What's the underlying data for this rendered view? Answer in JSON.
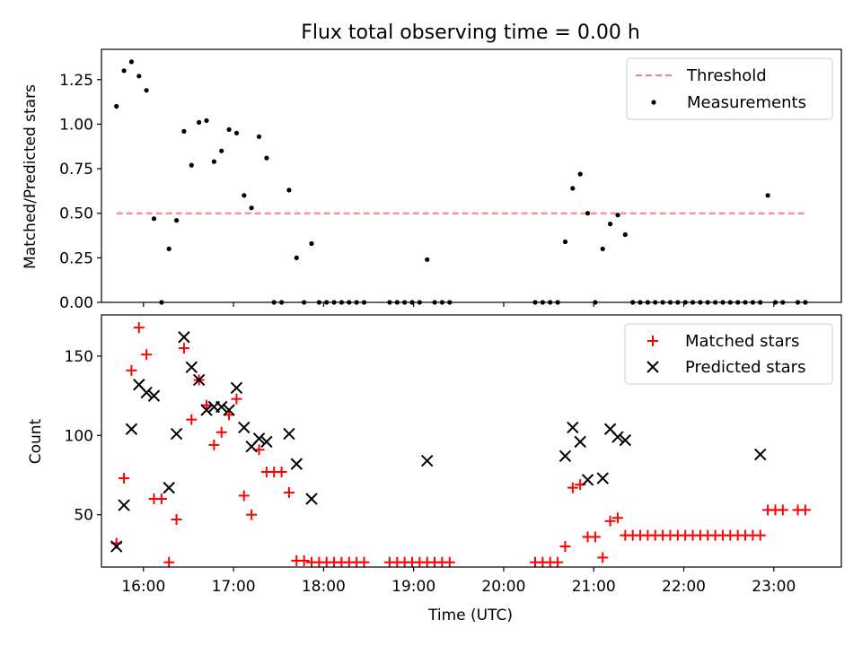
{
  "chart_data": [
    {
      "type": "scatter",
      "title": "Flux total observing time = 0.00 h",
      "ylabel": "Matched/Predicted stars",
      "xlabel": "",
      "xlim": [
        "15:32",
        "23:45"
      ],
      "ylim": [
        0,
        1.42
      ],
      "yticks": [
        0.0,
        0.25,
        0.5,
        0.75,
        1.0,
        1.25
      ],
      "ytick_labels": [
        "0.00",
        "0.25",
        "0.50",
        "0.75",
        "1.00",
        "1.25"
      ],
      "legend_position": "top-right",
      "grid": false,
      "threshold": {
        "name": "Threshold",
        "value": 0.5,
        "x_range": [
          "15:42",
          "23:21"
        ],
        "color": "#ff8080",
        "style": "dashed"
      },
      "series": [
        {
          "name": "Measurements",
          "color": "#000000",
          "marker": "dot",
          "x": [
            "15:42",
            "15:47",
            "15:52",
            "15:57",
            "16:02",
            "16:07",
            "16:12",
            "16:17",
            "16:22",
            "16:27",
            "16:32",
            "16:37",
            "16:42",
            "16:47",
            "16:52",
            "16:57",
            "17:02",
            "17:07",
            "17:12",
            "17:17",
            "17:22",
            "17:27",
            "17:32",
            "17:37",
            "17:42",
            "17:47",
            "17:52",
            "17:57",
            "18:02",
            "18:07",
            "18:12",
            "18:17",
            "18:22",
            "18:27",
            "18:44",
            "18:49",
            "18:54",
            "18:59",
            "19:04",
            "19:09",
            "19:14",
            "19:19",
            "19:24",
            "20:21",
            "20:26",
            "20:31",
            "20:36",
            "20:41",
            "20:46",
            "20:51",
            "20:56",
            "21:01",
            "21:06",
            "21:11",
            "21:16",
            "21:21",
            "21:26",
            "21:31",
            "21:36",
            "21:41",
            "21:46",
            "21:51",
            "21:56",
            "22:01",
            "22:06",
            "22:11",
            "22:16",
            "22:21",
            "22:26",
            "22:31",
            "22:36",
            "22:41",
            "22:46",
            "22:51",
            "22:56",
            "23:01",
            "23:06",
            "23:16",
            "23:21"
          ],
          "y": [
            1.1,
            1.3,
            1.35,
            1.27,
            1.19,
            0.47,
            0.0,
            0.3,
            0.46,
            0.96,
            0.77,
            1.01,
            1.02,
            0.79,
            0.85,
            0.97,
            0.95,
            0.6,
            0.53,
            0.93,
            0.81,
            0.0,
            0.0,
            0.63,
            0.25,
            0.0,
            0.33,
            0.0,
            0.0,
            0.0,
            0.0,
            0.0,
            0.0,
            0.0,
            0.0,
            0.0,
            0.0,
            0.0,
            0.0,
            0.24,
            0.0,
            0.0,
            0.0,
            0.0,
            0.0,
            0.0,
            0.0,
            0.34,
            0.64,
            0.72,
            0.5,
            0.0,
            0.3,
            0.44,
            0.49,
            0.38,
            0.0,
            0.0,
            0.0,
            0.0,
            0.0,
            0.0,
            0.0,
            0.0,
            0.0,
            0.0,
            0.0,
            0.0,
            0.0,
            0.0,
            0.0,
            0.0,
            0.0,
            0.0,
            0.6,
            0.0,
            0.0,
            0.0,
            0.0
          ]
        }
      ]
    },
    {
      "type": "scatter",
      "title": "",
      "xlabel": "Time (UTC)",
      "ylabel": "Count",
      "xlim": [
        "15:32",
        "23:45"
      ],
      "ylim": [
        17,
        176
      ],
      "yticks": [
        50,
        100,
        150
      ],
      "xtick_labels": [
        "16:00",
        "17:00",
        "18:00",
        "19:00",
        "20:00",
        "21:00",
        "22:00",
        "23:00"
      ],
      "legend_position": "top-right",
      "grid": false,
      "series": [
        {
          "name": "Matched stars",
          "color": "#ff0000",
          "marker": "plus",
          "x": [
            "15:42",
            "15:47",
            "15:52",
            "15:57",
            "16:02",
            "16:07",
            "16:12",
            "16:17",
            "16:22",
            "16:27",
            "16:32",
            "16:37",
            "16:42",
            "16:47",
            "16:52",
            "16:57",
            "17:02",
            "17:07",
            "17:12",
            "17:17",
            "17:22",
            "17:27",
            "17:32",
            "17:37",
            "17:42",
            "17:47",
            "17:52",
            "17:57",
            "18:02",
            "18:07",
            "18:12",
            "18:17",
            "18:22",
            "18:27",
            "18:44",
            "18:49",
            "18:54",
            "18:59",
            "19:04",
            "19:09",
            "19:14",
            "19:19",
            "19:24",
            "20:21",
            "20:26",
            "20:31",
            "20:36",
            "20:41",
            "20:46",
            "20:51",
            "20:56",
            "21:01",
            "21:06",
            "21:11",
            "21:16",
            "21:21",
            "21:26",
            "21:31",
            "21:36",
            "21:41",
            "21:46",
            "21:51",
            "21:56",
            "22:01",
            "22:06",
            "22:11",
            "22:16",
            "22:21",
            "22:26",
            "22:31",
            "22:36",
            "22:41",
            "22:46",
            "22:51",
            "22:56",
            "23:01",
            "23:06",
            "23:16",
            "23:21"
          ],
          "y": [
            32,
            73,
            141,
            168,
            151,
            60,
            60,
            20,
            47,
            155,
            110,
            135,
            119,
            94,
            102,
            113,
            123,
            62,
            50,
            91,
            77,
            77,
            77,
            64,
            21,
            21,
            20,
            20,
            20,
            20,
            20,
            20,
            20,
            20,
            20,
            20,
            20,
            20,
            20,
            20,
            20,
            20,
            20,
            20,
            20,
            20,
            20,
            30,
            67,
            69,
            36,
            36,
            23,
            46,
            48,
            37,
            37,
            37,
            37,
            37,
            37,
            37,
            37,
            37,
            37,
            37,
            37,
            37,
            37,
            37,
            37,
            37,
            37,
            37,
            53,
            53,
            53,
            53,
            53
          ]
        },
        {
          "name": "Predicted stars",
          "color": "#000000",
          "marker": "x",
          "x": [
            "15:42",
            "15:47",
            "15:52",
            "15:57",
            "16:02",
            "16:07",
            "16:17",
            "16:22",
            "16:27",
            "16:32",
            "16:37",
            "16:42",
            "16:47",
            "16:52",
            "16:57",
            "17:02",
            "17:07",
            "17:12",
            "17:17",
            "17:22",
            "17:37",
            "17:42",
            "17:52",
            "19:09",
            "20:41",
            "20:46",
            "20:51",
            "20:56",
            "21:06",
            "21:11",
            "21:16",
            "21:21",
            "22:51"
          ],
          "y": [
            30,
            56,
            104,
            132,
            127,
            125,
            67,
            101,
            162,
            143,
            135,
            116,
            118,
            118,
            116,
            130,
            105,
            93,
            98,
            96,
            101,
            82,
            60,
            84,
            87,
            105,
            96,
            72,
            73,
            104,
            99,
            97,
            88
          ]
        }
      ]
    }
  ]
}
